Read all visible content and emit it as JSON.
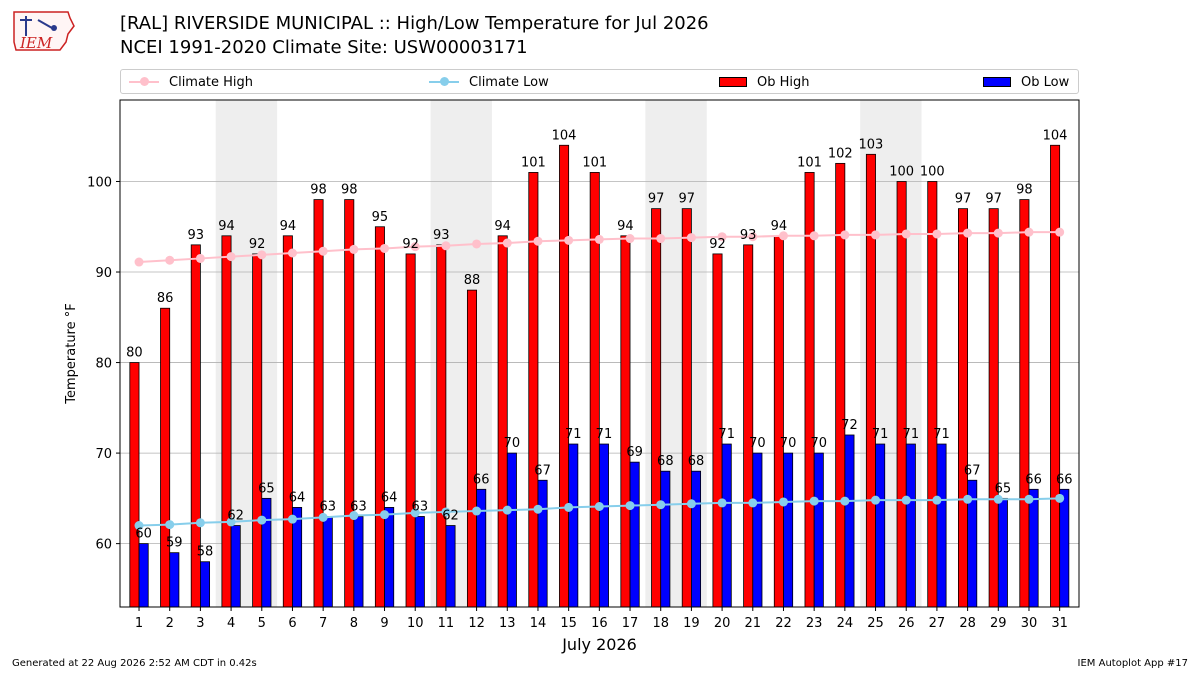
{
  "logo": {
    "text": "IEM"
  },
  "title_line1": "[RAL] RIVERSIDE MUNICIPAL :: High/Low Temperature for Jul 2026",
  "title_line2": "NCEI 1991-2020 Climate Site: USW00003171",
  "legend": {
    "climate_high": "Climate High",
    "climate_low": "Climate Low",
    "ob_high": "Ob High",
    "ob_low": "Ob Low"
  },
  "colors": {
    "ob_high": "#ff0000",
    "ob_low": "#0000ff",
    "climate_high": "#ffc0cb",
    "climate_low": "#87ceeb",
    "weekend_shade": "#eeeeee",
    "grid": "#b0b0b0"
  },
  "footer": {
    "generated": "Generated at 22 Aug 2026 2:52 AM CDT in 0.42s",
    "app": "IEM Autoplot App #17"
  },
  "chart_data": {
    "type": "bar",
    "xlabel": "July 2026",
    "ylabel": "Temperature °F",
    "ylim": [
      53,
      109
    ],
    "yticks": [
      60,
      70,
      80,
      90,
      100
    ],
    "grid": "horizontal",
    "legend_position": "top",
    "shaded_days": [
      [
        4,
        5
      ],
      [
        11,
        12
      ],
      [
        18,
        19
      ],
      [
        25,
        26
      ]
    ],
    "categories": [
      "1",
      "2",
      "3",
      "4",
      "5",
      "6",
      "7",
      "8",
      "9",
      "10",
      "11",
      "12",
      "13",
      "14",
      "15",
      "16",
      "17",
      "18",
      "19",
      "20",
      "21",
      "22",
      "23",
      "24",
      "25",
      "26",
      "27",
      "28",
      "29",
      "30",
      "31"
    ],
    "series": [
      {
        "name": "Ob High",
        "kind": "bar",
        "values": [
          80,
          86,
          93,
          94,
          92,
          94,
          98,
          98,
          95,
          92,
          93,
          88,
          94,
          101,
          104,
          101,
          94,
          97,
          97,
          92,
          93,
          94,
          101,
          102,
          103,
          100,
          100,
          97,
          97,
          98,
          104
        ]
      },
      {
        "name": "Ob Low",
        "kind": "bar",
        "values": [
          60,
          59,
          58,
          62,
          65,
          64,
          63,
          63,
          64,
          63,
          62,
          66,
          70,
          67,
          71,
          71,
          69,
          68,
          68,
          71,
          70,
          70,
          70,
          72,
          71,
          71,
          71,
          67,
          65,
          66,
          66
        ]
      },
      {
        "name": "Climate High",
        "kind": "line",
        "values": [
          91.1,
          91.3,
          91.5,
          91.7,
          91.9,
          92.1,
          92.3,
          92.5,
          92.6,
          92.8,
          92.9,
          93.1,
          93.2,
          93.4,
          93.5,
          93.6,
          93.7,
          93.7,
          93.8,
          93.9,
          93.9,
          94.0,
          94.0,
          94.1,
          94.1,
          94.2,
          94.2,
          94.3,
          94.3,
          94.4,
          94.4
        ]
      },
      {
        "name": "Climate Low",
        "kind": "line",
        "values": [
          62.0,
          62.1,
          62.3,
          62.4,
          62.6,
          62.7,
          62.9,
          63.1,
          63.2,
          63.4,
          63.5,
          63.6,
          63.7,
          63.8,
          64.0,
          64.1,
          64.2,
          64.3,
          64.4,
          64.5,
          64.5,
          64.6,
          64.7,
          64.7,
          64.8,
          64.8,
          64.8,
          64.9,
          64.9,
          64.9,
          65.0
        ]
      }
    ]
  }
}
